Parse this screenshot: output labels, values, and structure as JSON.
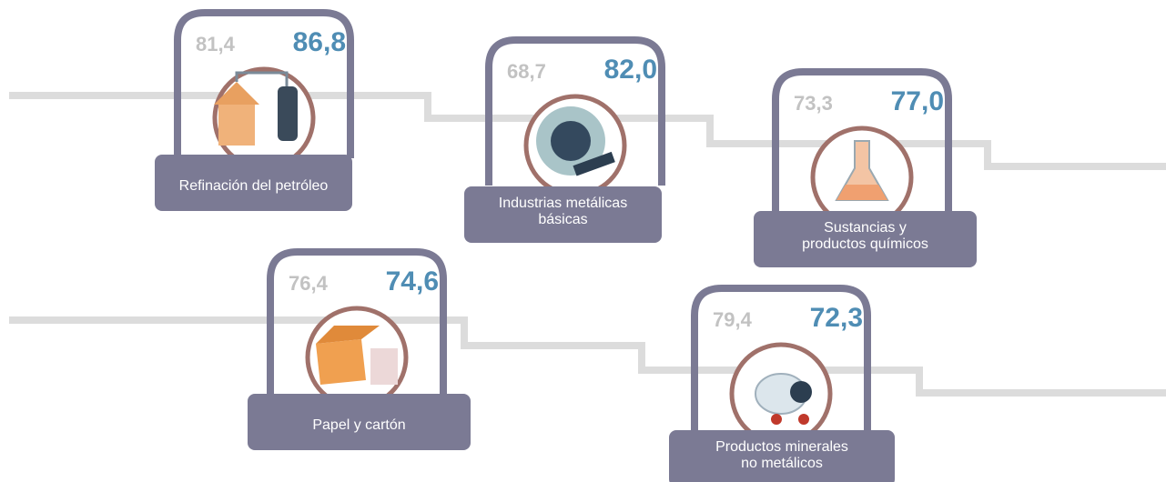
{
  "items": [
    {
      "label": [
        "Refinación del petróleo"
      ],
      "previous": "81,4",
      "current": "86,8"
    },
    {
      "label": [
        "Industrias metálicas",
        "básicas"
      ],
      "previous": "68,7",
      "current": "82,0"
    },
    {
      "label": [
        "Sustancias y",
        "productos químicos"
      ],
      "previous": "73,3",
      "current": "77,0"
    },
    {
      "label": [
        "Papel y cartón"
      ],
      "previous": "76,4",
      "current": "74,6"
    },
    {
      "label": [
        "Productos minerales",
        "no metálicos"
      ],
      "previous": "79,4",
      "current": "72,3"
    }
  ]
}
